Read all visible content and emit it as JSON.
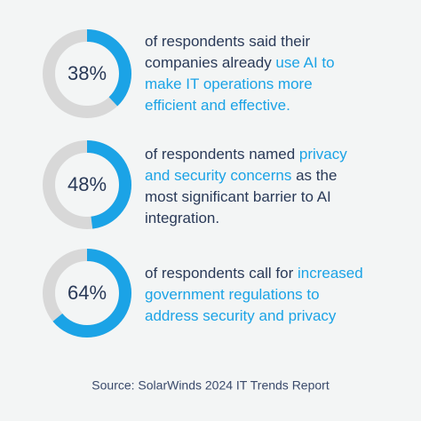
{
  "accent_color": "#1ba3e6",
  "text_color": "#2a3a58",
  "stats": [
    {
      "percent": {
        "value": 38,
        "label": "38%"
      },
      "lines": [
        [
          {
            "text": "of respondents said their",
            "accent": false
          }
        ],
        [
          {
            "text": "companies already ",
            "accent": false
          },
          {
            "text": "use AI to",
            "accent": true
          }
        ],
        [
          {
            "text": "make IT operations more",
            "accent": true
          }
        ],
        [
          {
            "text": "efficient and effective.",
            "accent": true
          }
        ]
      ]
    },
    {
      "percent": {
        "value": 48,
        "label": "48%"
      },
      "lines": [
        [
          {
            "text": "of respondents named ",
            "accent": false
          },
          {
            "text": "privacy",
            "accent": true
          }
        ],
        [
          {
            "text": "and security concerns",
            "accent": true
          },
          {
            "text": " as the",
            "accent": false
          }
        ],
        [
          {
            "text": "most significant barrier to AI",
            "accent": false
          }
        ],
        [
          {
            "text": "integration.",
            "accent": false
          }
        ]
      ]
    },
    {
      "percent": {
        "value": 64,
        "label": "64%"
      },
      "lines": [
        [
          {
            "text": "of respondents call for ",
            "accent": false
          },
          {
            "text": "increased",
            "accent": true
          }
        ],
        [
          {
            "text": "government regulations to",
            "accent": true
          }
        ],
        [
          {
            "text": "address security and privacy",
            "accent": true
          }
        ]
      ]
    }
  ],
  "source": "Source: SolarWinds 2024 IT Trends Report"
}
